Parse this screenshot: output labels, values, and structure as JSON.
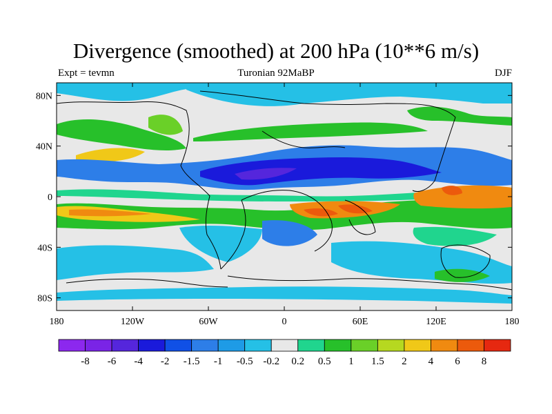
{
  "header": {
    "title": "Divergence (smoothed) at 200 hPa (10**6 m/s)",
    "left": "Expt = tevmn",
    "center": "Turonian  92MaBP",
    "right": "DJF"
  },
  "map": {
    "projection": "equirectangular",
    "lon_range": [
      -180,
      180
    ],
    "lat_range": [
      -90,
      90
    ],
    "x_ticks": [
      "180",
      "120W",
      "60W",
      "0",
      "60E",
      "120E",
      "180"
    ],
    "y_ticks": [
      "80N",
      "40N",
      "0",
      "40S",
      "80S"
    ]
  },
  "colorbar": {
    "labels": [
      "-8",
      "-6",
      "-4",
      "-2",
      "-1.5",
      "-1",
      "-0.5",
      "-0.2",
      "0.2",
      "0.5",
      "1",
      "1.5",
      "2",
      "4",
      "6",
      "8"
    ],
    "colors": [
      "#8c28ee",
      "#7a24e6",
      "#5526dc",
      "#1a1adb",
      "#1050e6",
      "#2d7ee8",
      "#1e9be6",
      "#25c0e6",
      "#e8e8e8",
      "#20d58e",
      "#27c02a",
      "#6ad028",
      "#b6d820",
      "#f0c818",
      "#f08a10",
      "#ec5a0c",
      "#e62810"
    ]
  },
  "colors": {
    "background_neutral": "#e8e8e8",
    "coast": "#000000"
  }
}
